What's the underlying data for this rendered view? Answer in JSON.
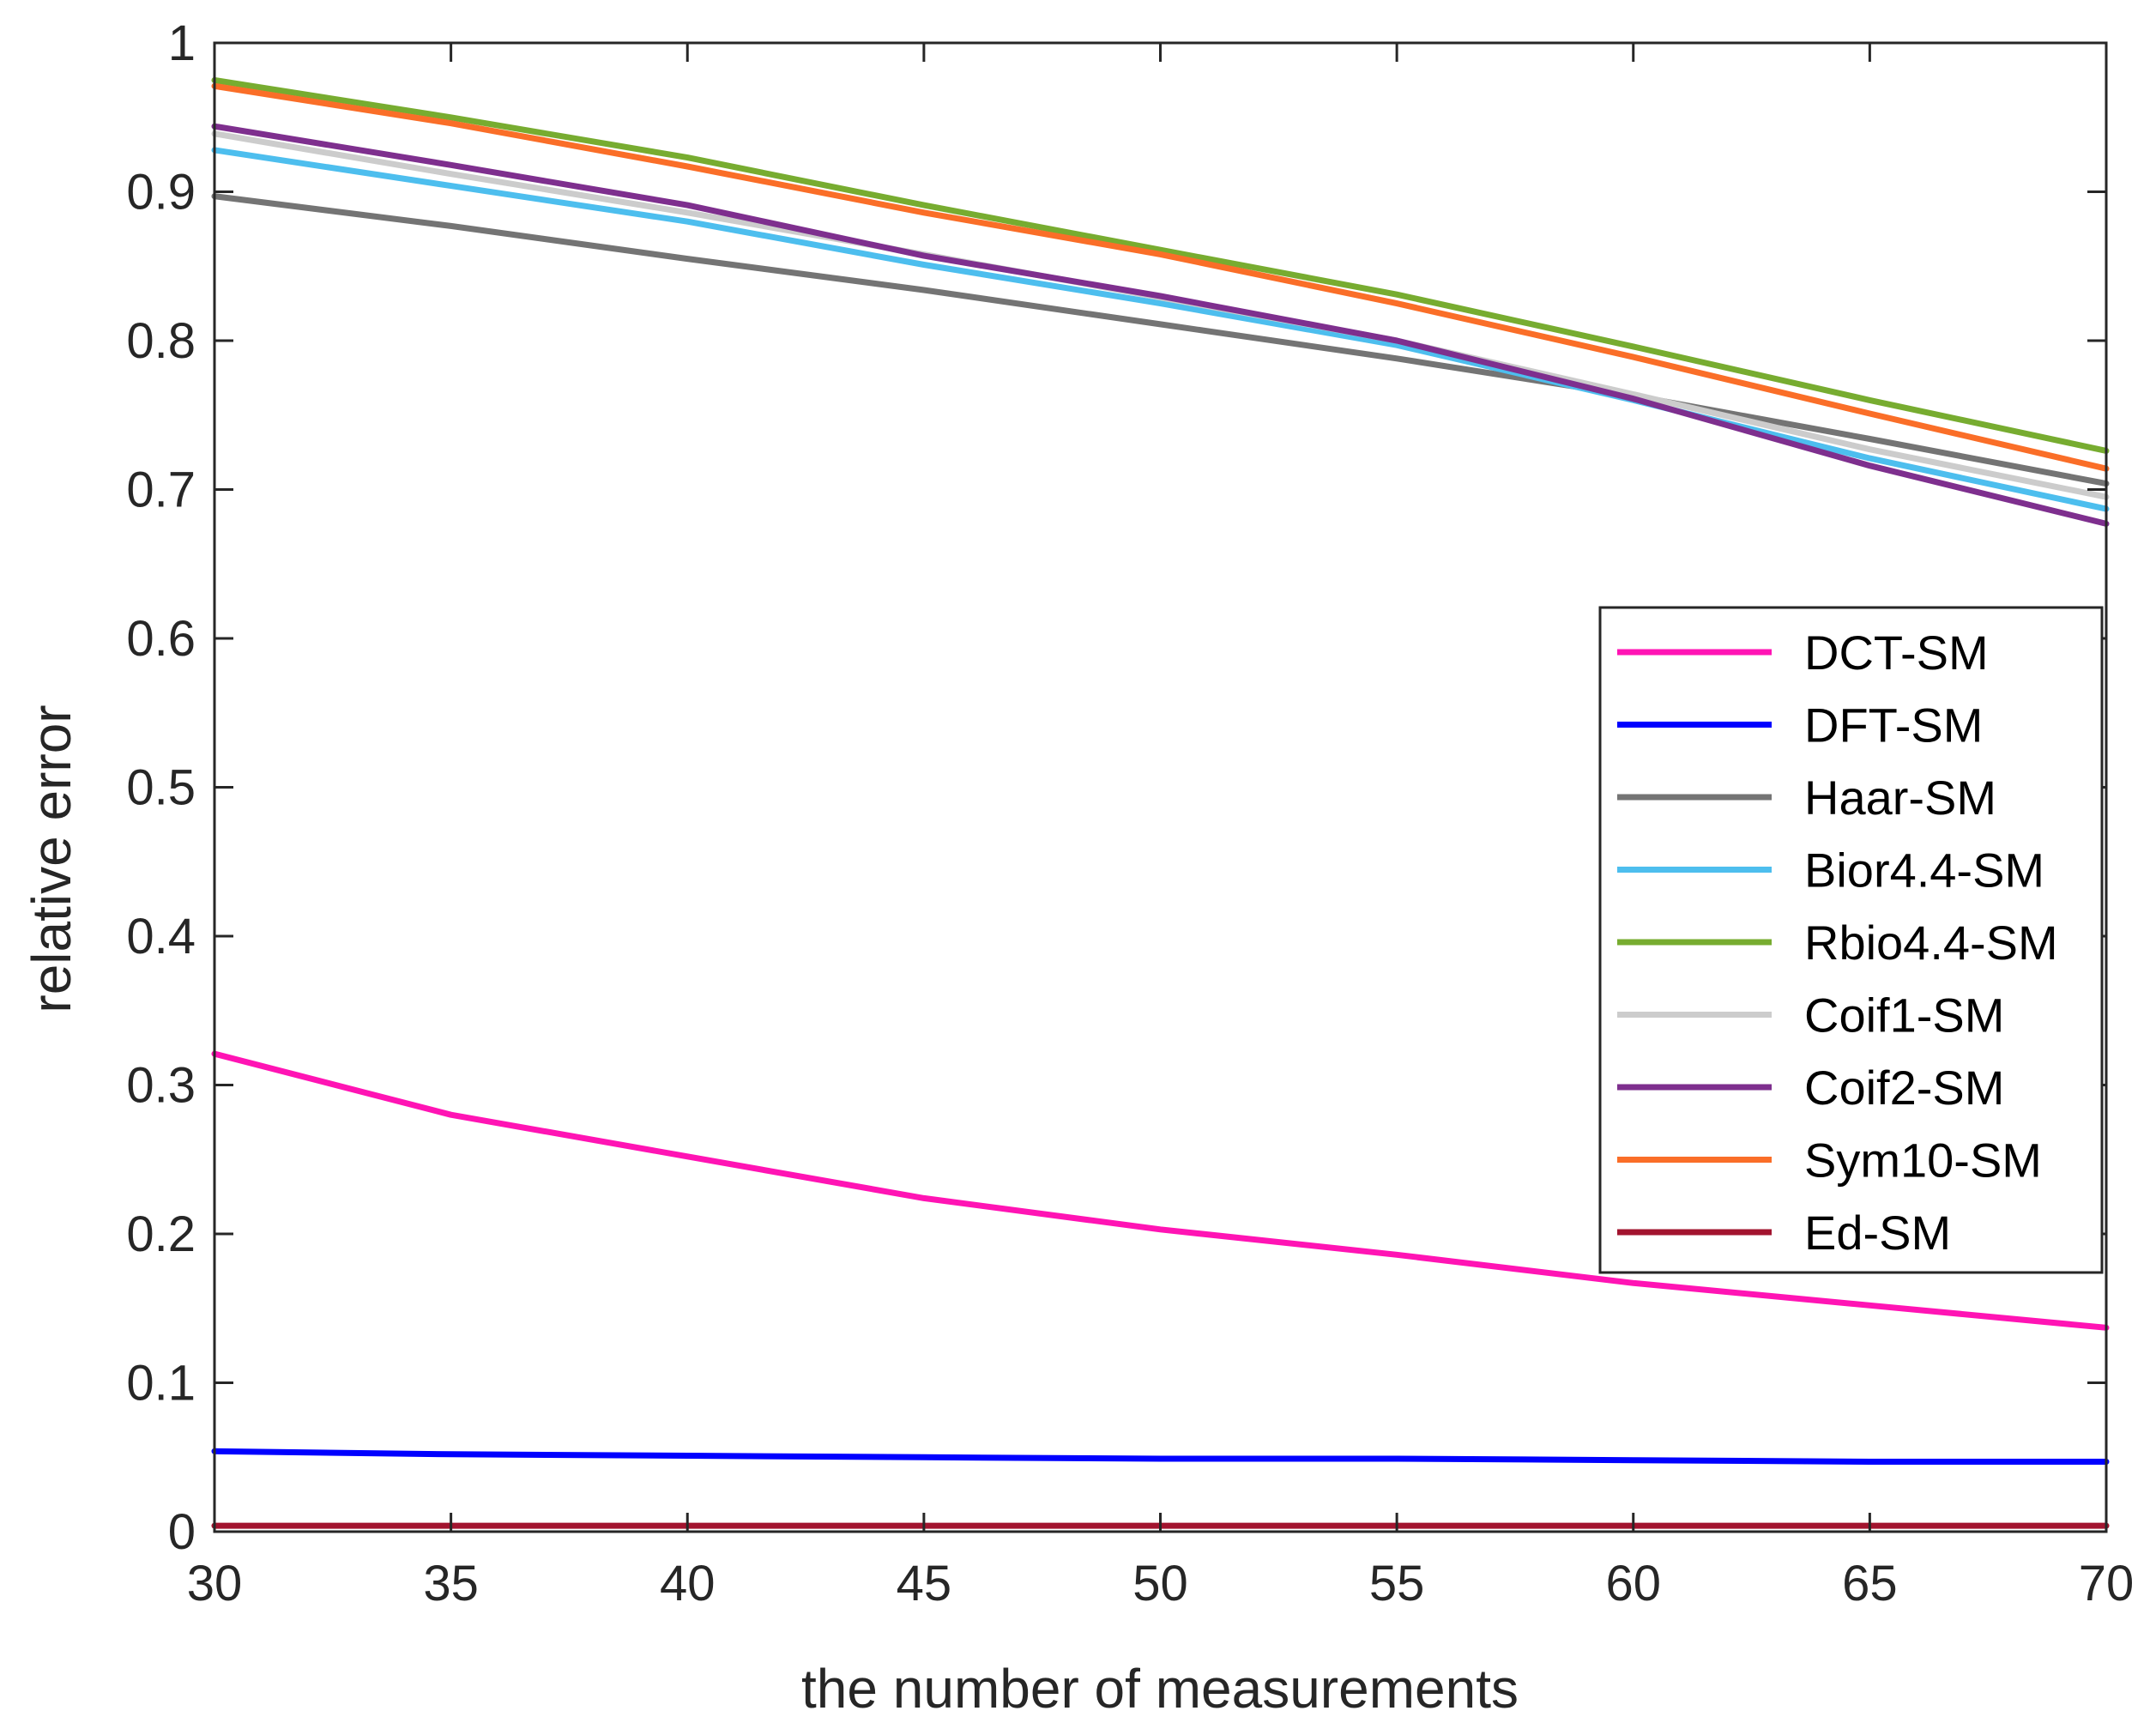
{
  "chart_data": {
    "type": "line",
    "title": "",
    "xlabel": "the number of measurements",
    "ylabel": "relative error",
    "xlim": [
      30,
      70
    ],
    "ylim": [
      0,
      1
    ],
    "xticks": [
      30,
      35,
      40,
      45,
      50,
      55,
      60,
      65,
      70
    ],
    "xtick_labels": [
      "30",
      "35",
      "40",
      "45",
      "50",
      "55",
      "60",
      "65",
      "70"
    ],
    "yticks": [
      0,
      0.1,
      0.2,
      0.3,
      0.4,
      0.5,
      0.6,
      0.7,
      0.8,
      0.9,
      1
    ],
    "ytick_labels": [
      "0",
      "0.1",
      "0.2",
      "0.3",
      "0.4",
      "0.5",
      "0.6",
      "0.7",
      "0.8",
      "0.9",
      "1"
    ],
    "grid": false,
    "legend_position": "right-middle",
    "x": [
      30,
      35,
      40,
      45,
      50,
      55,
      60,
      65,
      70
    ],
    "series": [
      {
        "name": "DCT-SM",
        "color": "#ff14b4",
        "values": [
          0.321,
          0.28,
          0.252,
          0.224,
          0.203,
          0.186,
          0.167,
          0.152,
          0.137
        ]
      },
      {
        "name": "DFT-SM",
        "color": "#0000ff",
        "values": [
          0.054,
          0.052,
          0.051,
          0.05,
          0.049,
          0.049,
          0.048,
          0.047,
          0.047
        ]
      },
      {
        "name": "Haar-SM",
        "color": "#747474",
        "values": [
          0.897,
          0.877,
          0.855,
          0.834,
          0.811,
          0.788,
          0.763,
          0.734,
          0.704
        ]
      },
      {
        "name": "Bior4.4-SM",
        "color": "#4dbeee",
        "values": [
          0.928,
          0.904,
          0.88,
          0.851,
          0.825,
          0.797,
          0.76,
          0.721,
          0.687
        ]
      },
      {
        "name": "Rbio4.4-SM",
        "color": "#77ac30",
        "values": [
          0.975,
          0.95,
          0.923,
          0.891,
          0.861,
          0.831,
          0.796,
          0.76,
          0.726
        ]
      },
      {
        "name": "Coif1-SM",
        "color": "#cccccc",
        "values": [
          0.939,
          0.912,
          0.886,
          0.858,
          0.829,
          0.8,
          0.764,
          0.727,
          0.695
        ]
      },
      {
        "name": "Coif2-SM",
        "color": "#7e2f8e",
        "values": [
          0.944,
          0.918,
          0.891,
          0.857,
          0.83,
          0.8,
          0.761,
          0.716,
          0.677
        ]
      },
      {
        "name": "Sym10-SM",
        "color": "#fa6e28",
        "values": [
          0.971,
          0.946,
          0.917,
          0.886,
          0.858,
          0.825,
          0.789,
          0.751,
          0.714
        ]
      },
      {
        "name": "Ed-SM",
        "color": "#a2142f",
        "values": [
          0.004,
          0.004,
          0.004,
          0.004,
          0.004,
          0.004,
          0.004,
          0.004,
          0.004
        ]
      }
    ]
  }
}
